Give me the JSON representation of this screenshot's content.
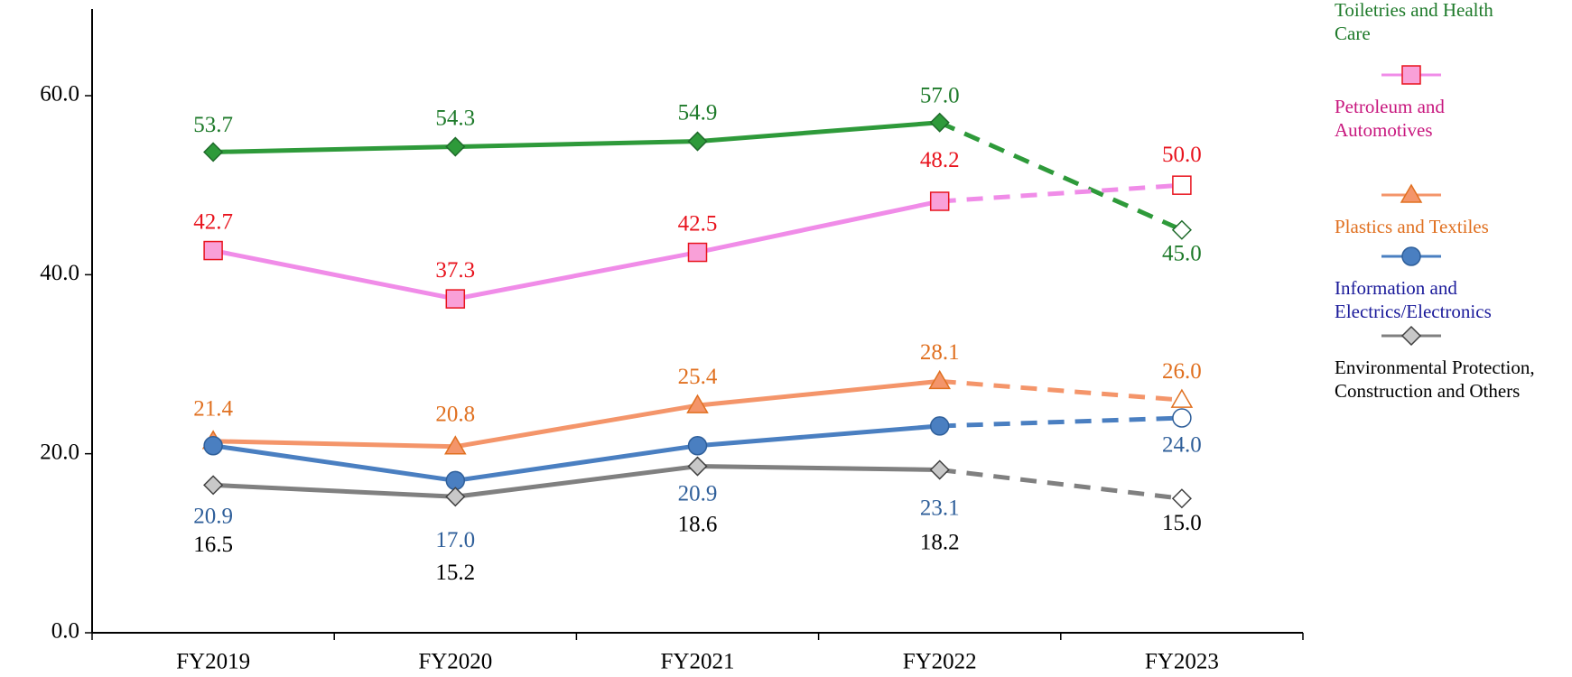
{
  "chart_data": {
    "type": "line",
    "categories": [
      "FY2019",
      "FY2020",
      "FY2021",
      "FY2022",
      "FY2023"
    ],
    "ylim": [
      0,
      60
    ],
    "yticks": [
      {
        "value": 0,
        "label": "0.0"
      },
      {
        "value": 20,
        "label": "20.0"
      },
      {
        "value": 40,
        "label": "40.0"
      },
      {
        "value": 60,
        "label": "60.0"
      }
    ],
    "series": [
      {
        "name": "Toiletries and Health Care",
        "color": "#2e9a3a",
        "label_color": "#1e7a2a",
        "marker": "diamond",
        "marker_fill": "#2e9a3a",
        "values": [
          53.7,
          54.3,
          54.9,
          57.0,
          45.0
        ],
        "value_labels": [
          "53.7",
          "54.3",
          "54.9",
          "57.0",
          "45.0"
        ]
      },
      {
        "name": "Petroleum and Automotives",
        "color": "#f08ce8",
        "label_color": "#e8141e",
        "legend_color": "#c8177e",
        "marker": "square",
        "marker_fill": "#f9a0d8",
        "marker_stroke": "#e8141e",
        "values": [
          42.7,
          37.3,
          42.5,
          48.2,
          50.0
        ],
        "value_labels": [
          "42.7",
          "37.3",
          "42.5",
          "48.2",
          "50.0"
        ]
      },
      {
        "name": "Plastics and Textiles",
        "color": "#f4956a",
        "label_color": "#e07020",
        "marker": "triangle",
        "marker_fill": "#f4956a",
        "marker_stroke": "#e07020",
        "values": [
          21.4,
          20.8,
          25.4,
          28.1,
          26.0
        ],
        "value_labels": [
          "21.4",
          "20.8",
          "25.4",
          "28.1",
          "26.0"
        ]
      },
      {
        "name": "Information and Electrics/Electronics",
        "color": "#4a7fc1",
        "label_color": "#2f5f9a",
        "legend_color": "#1a1a9a",
        "marker": "circle",
        "marker_fill": "#4a7fc1",
        "marker_stroke": "#2f5f9a",
        "values": [
          20.9,
          17.0,
          20.9,
          23.1,
          24.0
        ],
        "value_labels": [
          "20.9",
          "17.0",
          "20.9",
          "23.1",
          "24.0"
        ]
      },
      {
        "name": "Environmental Protection, Construction and Others",
        "color": "#808080",
        "label_color": "#000000",
        "marker": "diamond",
        "marker_fill": "#c8c8c8",
        "marker_stroke": "#404040",
        "values": [
          16.5,
          15.2,
          18.6,
          18.2,
          15.0
        ],
        "value_labels": [
          "16.5",
          "15.2",
          "18.6",
          "18.2",
          "15.0"
        ]
      }
    ]
  }
}
